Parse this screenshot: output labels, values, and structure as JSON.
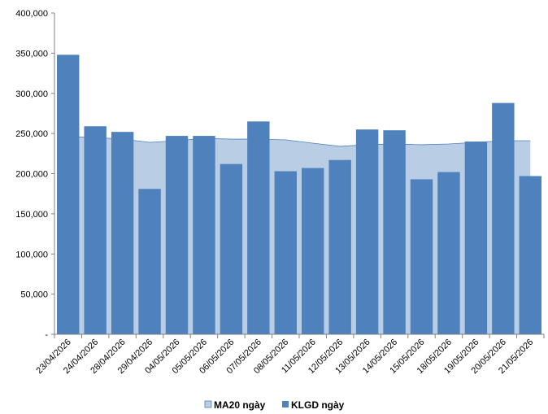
{
  "chart_data": {
    "type": "bar",
    "categories": [
      "23/04/2026",
      "24/04/2026",
      "28/04/2026",
      "29/04/2026",
      "04/05/2026",
      "05/05/2026",
      "06/05/2026",
      "07/05/2026",
      "08/05/2026",
      "11/05/2026",
      "12/05/2026",
      "13/05/2026",
      "14/05/2026",
      "15/05/2026",
      "18/05/2026",
      "19/05/2026",
      "20/05/2026",
      "21/05/2026"
    ],
    "ylim": [
      0,
      400000
    ],
    "yticks": [
      0,
      50000,
      100000,
      150000,
      200000,
      250000,
      300000,
      350000,
      400000
    ],
    "ytick_labels": [
      "-",
      "50,000",
      "100,000",
      "150,000",
      "200,000",
      "250,000",
      "300,000",
      "350,000",
      "400,000"
    ],
    "series": [
      {
        "name": "MA20 ngày",
        "type": "area",
        "color": "#b9cde5",
        "line_color": "#4f81bd",
        "values": [
          246000,
          245000,
          243000,
          239000,
          241000,
          244000,
          243000,
          243000,
          242000,
          238000,
          234000,
          236000,
          237000,
          236000,
          237000,
          239000,
          241000,
          241000
        ]
      },
      {
        "name": "KLGD ngày",
        "type": "bar",
        "color": "#4f81bd",
        "values": [
          348000,
          259000,
          252000,
          181000,
          247000,
          247000,
          212000,
          265000,
          203000,
          207000,
          217000,
          255000,
          254000,
          193000,
          202000,
          240000,
          288000,
          197000
        ]
      }
    ],
    "legend_position": "bottom",
    "grid": false
  }
}
